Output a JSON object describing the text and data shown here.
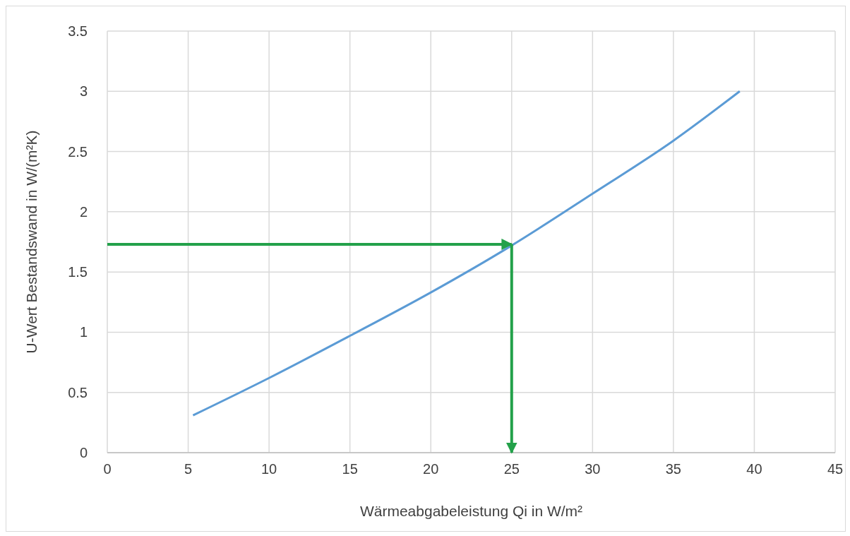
{
  "chart_data": {
    "type": "line",
    "xlabel": "Wärmeabgabeleistung Qi in W/m²",
    "ylabel": "U-Wert Bestandswand in W/(m²K)",
    "xlim": [
      0,
      45
    ],
    "xticks": [
      0,
      5,
      10,
      15,
      20,
      25,
      30,
      35,
      40,
      45
    ],
    "ylim": [
      0,
      3.5
    ],
    "yticks": [
      0,
      0.5,
      1,
      1.5,
      2,
      2.5,
      3,
      3.5
    ],
    "grid": true,
    "series": [
      {
        "color": "#5b9bd5",
        "x": [
          5.3,
          10,
          15,
          20,
          25,
          30,
          35,
          39.1
        ],
        "values": [
          0.31,
          0.62,
          0.97,
          1.33,
          1.72,
          2.15,
          2.59,
          3.0
        ]
      },
      {
        "color": "#23a14a",
        "x": [
          0,
          25
        ],
        "values": [
          1.73,
          1.73
        ]
      },
      {
        "color": "#23a14a",
        "x": [
          25,
          25
        ],
        "values": [
          1.73,
          0
        ]
      }
    ]
  }
}
